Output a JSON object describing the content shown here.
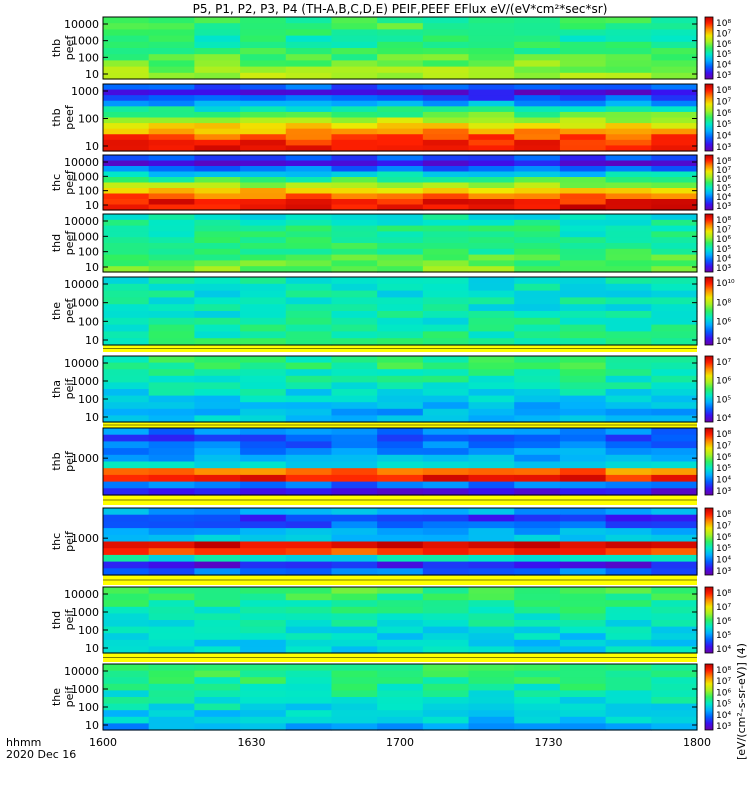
{
  "title": "P5, P1, P2, P3, P4 (TH-A,B,C,D,E) PEIF,PEEF EFlux eV/(eV*cm²*sec*sr)",
  "footer": {
    "time_label": "hhmm",
    "date_label": "2020 Dec 16"
  },
  "colorbar_label": "[eV/(cm²-s-sr-eV)]  (4)",
  "colors": {
    "spectral": [
      "#6a00a8",
      "#3a10f0",
      "#0060ff",
      "#00b0ff",
      "#00e8c8",
      "#30f060",
      "#a8f020",
      "#f0e800",
      "#ff8c00",
      "#ff2000",
      "#c00000"
    ],
    "background": "#ffffff",
    "fill_gap": "#ffff00"
  },
  "chart_data": {
    "type": "heatmap",
    "x_axis": {
      "ticks": [
        "1600",
        "1630",
        "1700",
        "1730",
        "1800"
      ]
    },
    "panels": [
      {
        "ylabel": [
          "thb",
          "peef"
        ],
        "yticks": [
          "10",
          "100",
          "1000",
          "10000"
        ],
        "cb_ticks": [
          "10⁸",
          "10⁷",
          "10⁶",
          "10⁵",
          "10⁴",
          "10³"
        ]
      },
      {
        "ylabel": [
          "thb",
          "peef"
        ],
        "yticks": [
          "10",
          "100",
          "1000"
        ],
        "cb_ticks": [
          "10⁸",
          "10⁷",
          "10⁶",
          "10⁵",
          "10⁴",
          "10³"
        ]
      },
      {
        "ylabel": [
          "thc",
          "peef"
        ],
        "yticks": [
          "10",
          "100",
          "1000",
          "10000"
        ],
        "cb_ticks": [
          "10⁸",
          "10⁷",
          "10⁶",
          "10⁵",
          "10⁴",
          "10³"
        ]
      },
      {
        "ylabel": [
          "thd",
          "peef"
        ],
        "yticks": [
          "10",
          "100",
          "1000",
          "10000"
        ],
        "cb_ticks": [
          "10⁸",
          "10⁷",
          "10⁶",
          "10⁵",
          "10⁴",
          "10³"
        ]
      },
      {
        "ylabel": [
          "the",
          "peef"
        ],
        "yticks": [
          "10",
          "100",
          "1000",
          "10000"
        ],
        "cb_ticks": [
          "10¹⁰",
          "10⁸",
          "10⁶",
          "10⁴"
        ]
      },
      {
        "ylabel": [
          "tha",
          "peif"
        ],
        "yticks": [
          "10",
          "100",
          "1000",
          "10000"
        ],
        "cb_ticks": [
          "10⁷",
          "10⁶",
          "10⁵",
          "10⁴"
        ]
      },
      {
        "ylabel": [
          "thb",
          "peif"
        ],
        "yticks": [
          "1000"
        ],
        "cb_ticks": [
          "10⁸",
          "10⁷",
          "10⁶",
          "10⁵",
          "10⁴",
          "10³"
        ]
      },
      {
        "ylabel": [
          "thc",
          "peif"
        ],
        "yticks": [
          "1000"
        ],
        "cb_ticks": [
          "10⁸",
          "10⁷",
          "10⁶",
          "10⁵",
          "10⁴",
          "10³"
        ]
      },
      {
        "ylabel": [
          "thd",
          "peif"
        ],
        "yticks": [
          "10",
          "100",
          "1000",
          "10000"
        ],
        "cb_ticks": [
          "10⁸",
          "10⁷",
          "10⁶",
          "10⁵",
          "10⁴"
        ]
      },
      {
        "ylabel": [
          "the",
          "peif"
        ],
        "yticks": [
          "10",
          "100",
          "1000",
          "10000"
        ],
        "cb_ticks": [
          "10⁸",
          "10⁷",
          "10⁶",
          "10⁵",
          "10⁴",
          "10³"
        ]
      }
    ]
  }
}
